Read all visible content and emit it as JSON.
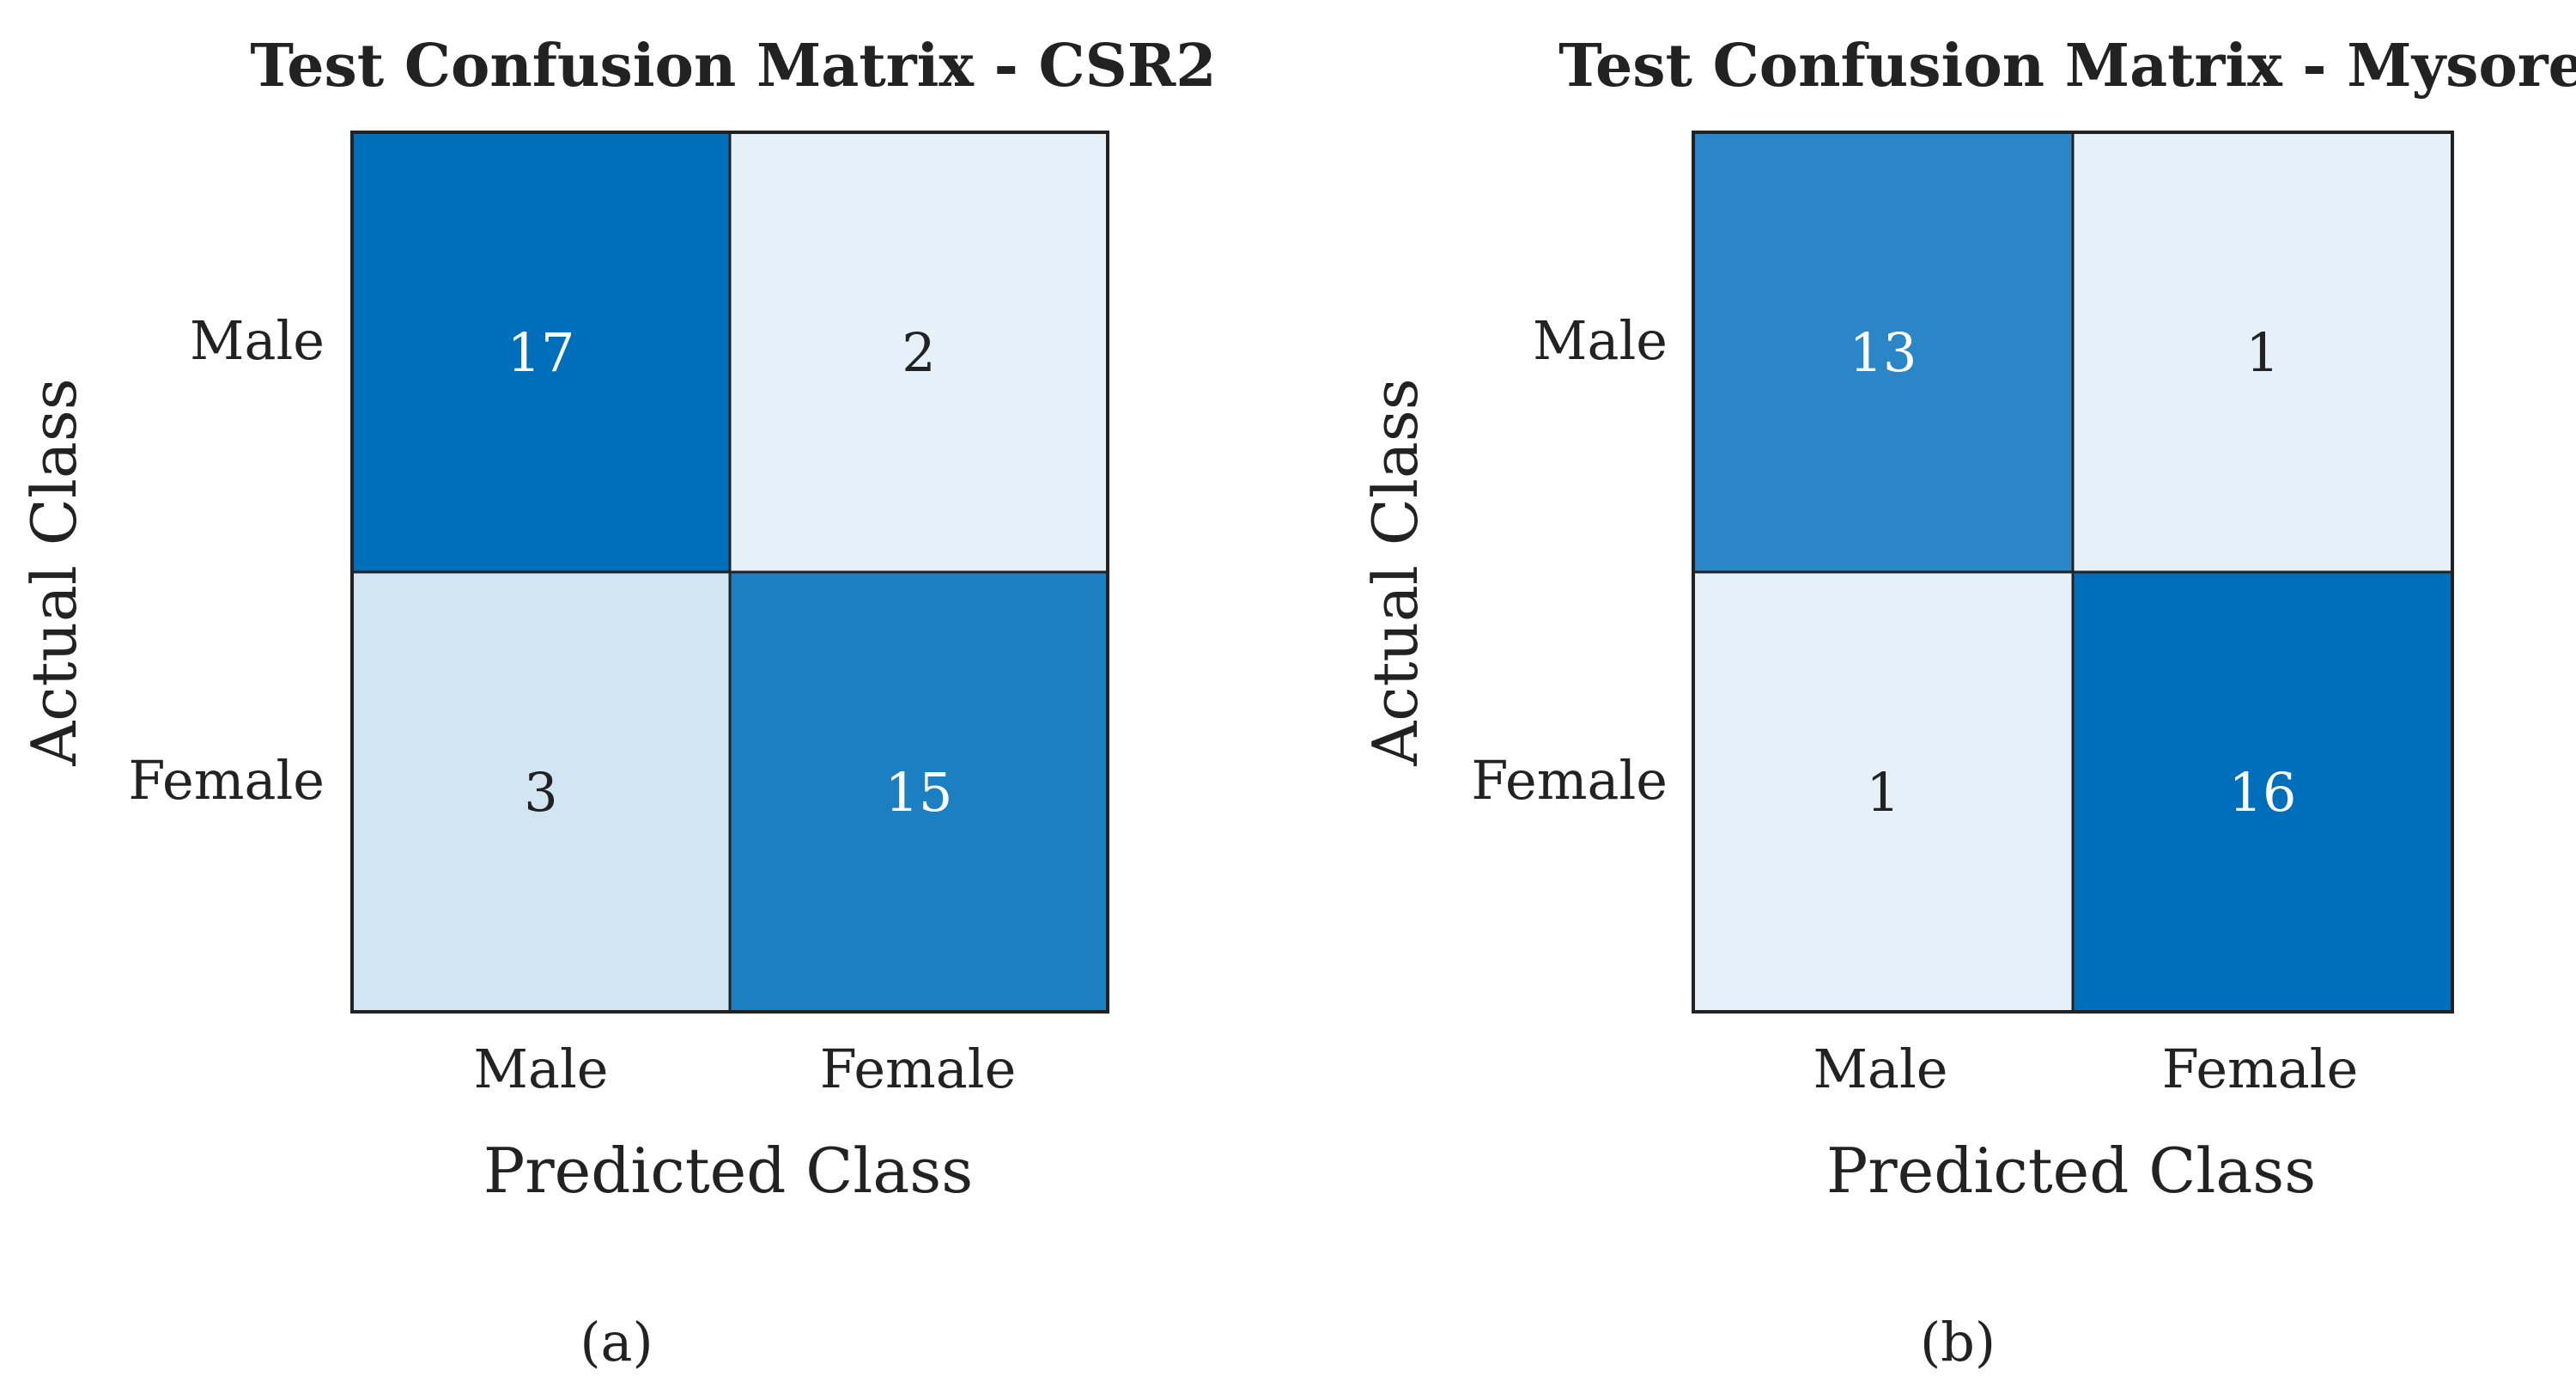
{
  "chart_data": [
    {
      "type": "heatmap",
      "title": "Test Confusion Matrix - CSR2",
      "xlabel": "Predicted Class",
      "ylabel": "Actual Class",
      "x_categories": [
        "Male",
        "Female"
      ],
      "y_categories": [
        "Male",
        "Female"
      ],
      "values": [
        [
          17,
          2
        ],
        [
          3,
          15
        ]
      ],
      "caption": "(a)",
      "colorscale": "blues",
      "colorbar": false,
      "grid": false
    },
    {
      "type": "heatmap",
      "title": "Test Confusion Matrix - Mysore",
      "xlabel": "Predicted Class",
      "ylabel": "Actual Class",
      "x_categories": [
        "Male",
        "Female"
      ],
      "y_categories": [
        "Male",
        "Female"
      ],
      "values": [
        [
          13,
          1
        ],
        [
          1,
          16
        ]
      ],
      "caption": "(b)",
      "colorscale": "blues",
      "colorbar": false,
      "grid": false
    }
  ],
  "colors": {
    "high": "#006fbb",
    "low": "#e6f0f8",
    "border": "#222222",
    "text_dark": "#222222",
    "text_light": "#ffffff"
  }
}
